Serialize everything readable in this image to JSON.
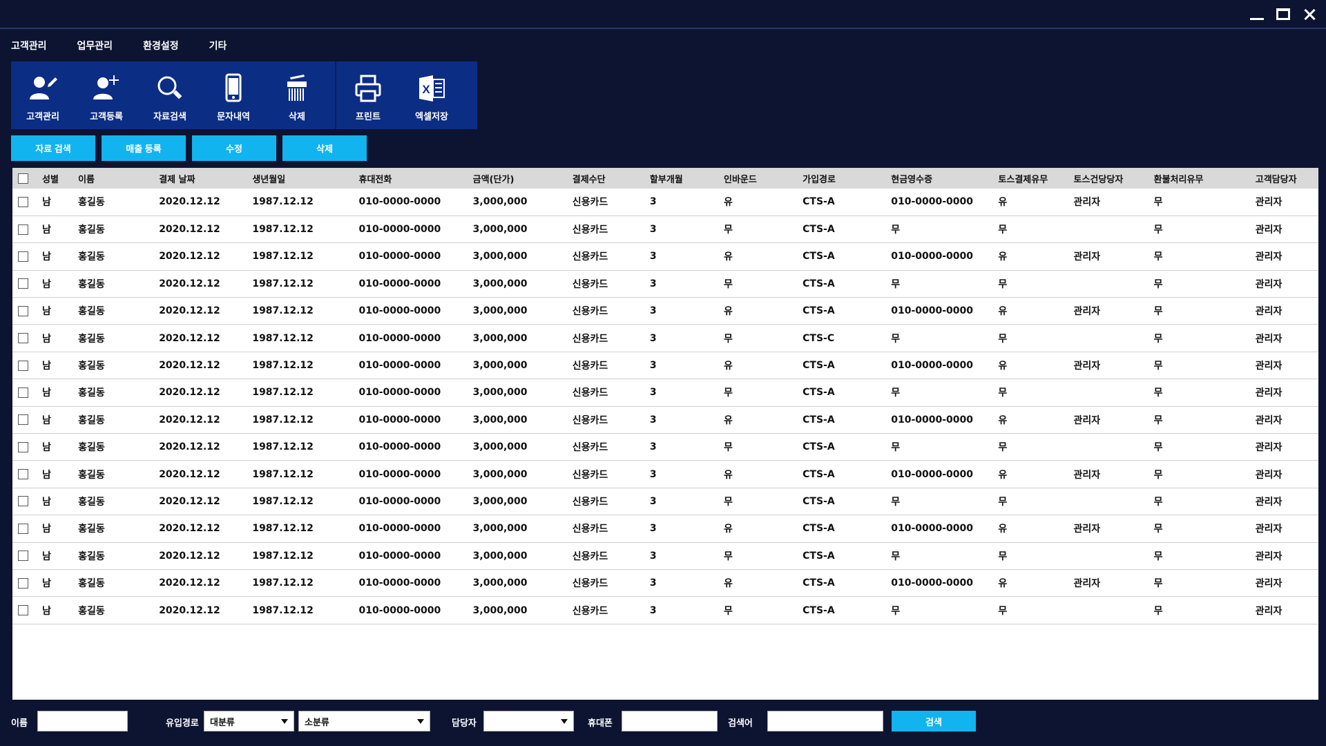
{
  "menu": [
    "고객관리",
    "업무관리",
    "환경설정",
    "기타"
  ],
  "toolbar": {
    "left": [
      {
        "label": "고객관리",
        "icon": "user-edit-icon"
      },
      {
        "label": "고객등록",
        "icon": "user-add-icon"
      },
      {
        "label": "자료검색",
        "icon": "search-icon"
      },
      {
        "label": "문자내역",
        "icon": "mobile-phone-icon"
      },
      {
        "label": "삭제",
        "icon": "shredder-icon"
      }
    ],
    "right": [
      {
        "label": "프린트",
        "icon": "printer-icon"
      },
      {
        "label": "엑셀저장",
        "icon": "excel-icon"
      }
    ]
  },
  "actions": [
    "자료 검색",
    "매출 등록",
    "수정",
    "삭제"
  ],
  "table": {
    "headers": [
      "성별",
      "이름",
      "결제 날짜",
      "생년월일",
      "휴대전화",
      "금액(단가)",
      "결제수단",
      "할부개월",
      "인바운드",
      "가입경로",
      "현금영수증",
      "토스결제유무",
      "토스건당당자",
      "환불처리유무",
      "고객담당자"
    ],
    "rows": [
      [
        "남",
        "홍길동",
        "2020.12.12",
        "1987.12.12",
        "010-0000-0000",
        "3,000,000",
        "신용카드",
        "3",
        "유",
        "CTS-A",
        "010-0000-0000",
        "유",
        "관리자",
        "무",
        "관리자"
      ],
      [
        "남",
        "홍길동",
        "2020.12.12",
        "1987.12.12",
        "010-0000-0000",
        "3,000,000",
        "신용카드",
        "3",
        "무",
        "CTS-A",
        "무",
        "무",
        "",
        "무",
        "관리자"
      ],
      [
        "남",
        "홍길동",
        "2020.12.12",
        "1987.12.12",
        "010-0000-0000",
        "3,000,000",
        "신용카드",
        "3",
        "유",
        "CTS-A",
        "010-0000-0000",
        "유",
        "관리자",
        "무",
        "관리자"
      ],
      [
        "남",
        "홍길동",
        "2020.12.12",
        "1987.12.12",
        "010-0000-0000",
        "3,000,000",
        "신용카드",
        "3",
        "무",
        "CTS-A",
        "무",
        "무",
        "",
        "무",
        "관리자"
      ],
      [
        "남",
        "홍길동",
        "2020.12.12",
        "1987.12.12",
        "010-0000-0000",
        "3,000,000",
        "신용카드",
        "3",
        "유",
        "CTS-A",
        "010-0000-0000",
        "유",
        "관리자",
        "무",
        "관리자"
      ],
      [
        "남",
        "홍길동",
        "2020.12.12",
        "1987.12.12",
        "010-0000-0000",
        "3,000,000",
        "신용카드",
        "3",
        "무",
        "CTS-C",
        "무",
        "무",
        "",
        "무",
        "관리자"
      ],
      [
        "남",
        "홍길동",
        "2020.12.12",
        "1987.12.12",
        "010-0000-0000",
        "3,000,000",
        "신용카드",
        "3",
        "유",
        "CTS-A",
        "010-0000-0000",
        "유",
        "관리자",
        "무",
        "관리자"
      ],
      [
        "남",
        "홍길동",
        "2020.12.12",
        "1987.12.12",
        "010-0000-0000",
        "3,000,000",
        "신용카드",
        "3",
        "무",
        "CTS-A",
        "무",
        "무",
        "",
        "무",
        "관리자"
      ],
      [
        "남",
        "홍길동",
        "2020.12.12",
        "1987.12.12",
        "010-0000-0000",
        "3,000,000",
        "신용카드",
        "3",
        "유",
        "CTS-A",
        "010-0000-0000",
        "유",
        "관리자",
        "무",
        "관리자"
      ],
      [
        "남",
        "홍길동",
        "2020.12.12",
        "1987.12.12",
        "010-0000-0000",
        "3,000,000",
        "신용카드",
        "3",
        "무",
        "CTS-A",
        "무",
        "무",
        "",
        "무",
        "관리자"
      ],
      [
        "남",
        "홍길동",
        "2020.12.12",
        "1987.12.12",
        "010-0000-0000",
        "3,000,000",
        "신용카드",
        "3",
        "유",
        "CTS-A",
        "010-0000-0000",
        "유",
        "관리자",
        "무",
        "관리자"
      ],
      [
        "남",
        "홍길동",
        "2020.12.12",
        "1987.12.12",
        "010-0000-0000",
        "3,000,000",
        "신용카드",
        "3",
        "무",
        "CTS-A",
        "무",
        "무",
        "",
        "무",
        "관리자"
      ],
      [
        "남",
        "홍길동",
        "2020.12.12",
        "1987.12.12",
        "010-0000-0000",
        "3,000,000",
        "신용카드",
        "3",
        "유",
        "CTS-A",
        "010-0000-0000",
        "유",
        "관리자",
        "무",
        "관리자"
      ],
      [
        "남",
        "홍길동",
        "2020.12.12",
        "1987.12.12",
        "010-0000-0000",
        "3,000,000",
        "신용카드",
        "3",
        "무",
        "CTS-A",
        "무",
        "무",
        "",
        "무",
        "관리자"
      ],
      [
        "남",
        "홍길동",
        "2020.12.12",
        "1987.12.12",
        "010-0000-0000",
        "3,000,000",
        "신용카드",
        "3",
        "유",
        "CTS-A",
        "010-0000-0000",
        "유",
        "관리자",
        "무",
        "관리자"
      ],
      [
        "남",
        "홍길동",
        "2020.12.12",
        "1987.12.12",
        "010-0000-0000",
        "3,000,000",
        "신용카드",
        "3",
        "무",
        "CTS-A",
        "무",
        "무",
        "",
        "무",
        "관리자"
      ]
    ]
  },
  "search": {
    "name_label": "이름",
    "name_value": "",
    "route_label": "유입경로",
    "route_major": "대분류",
    "route_minor": "소분류",
    "manager_label": "담당자",
    "manager_value": "",
    "phone_label": "휴대폰",
    "phone_value": "",
    "keyword_label": "검색어",
    "keyword_value": "",
    "button": "검색"
  },
  "colors": {
    "background": "#0d1431",
    "toolbar": "#0c2d84",
    "accent": "#12b4ef",
    "table_header": "#d9d9d9"
  }
}
